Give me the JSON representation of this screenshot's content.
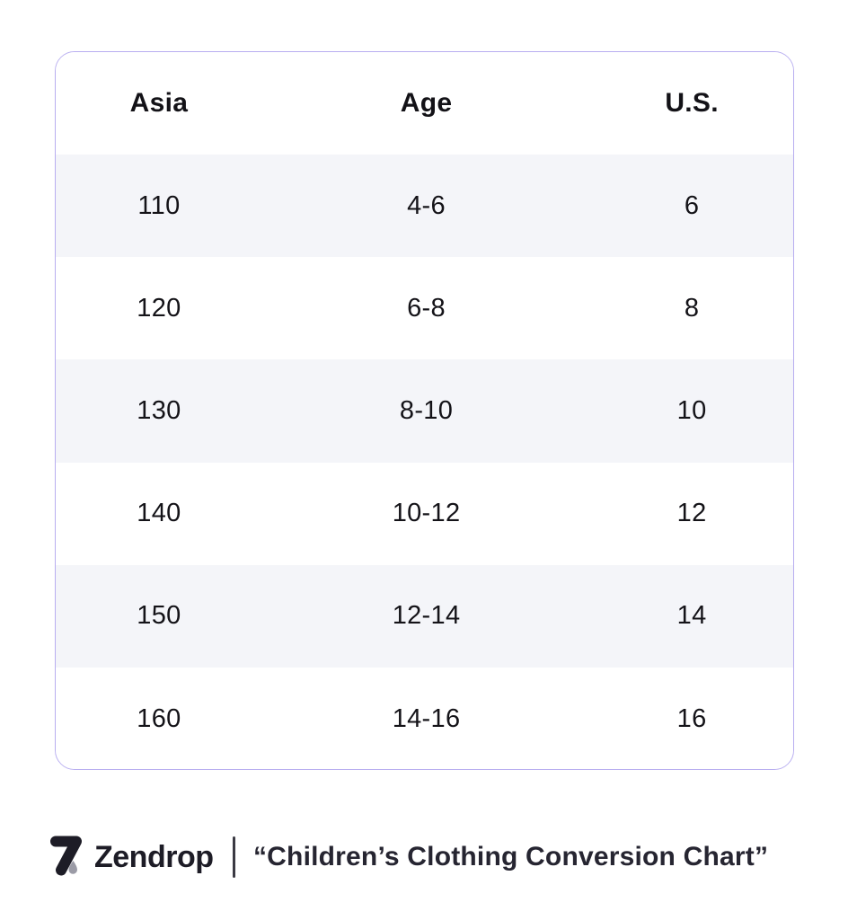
{
  "chart_data": {
    "type": "table",
    "title": "“Children’s Clothing Conversion Chart”",
    "columns": [
      "Asia",
      "Age",
      "U.S."
    ],
    "rows": [
      [
        "110",
        "4-6",
        "6"
      ],
      [
        "120",
        "6-8",
        "8"
      ],
      [
        "130",
        "8-10",
        "10"
      ],
      [
        "140",
        "10-12",
        "12"
      ],
      [
        "150",
        "12-14",
        "14"
      ],
      [
        "160",
        "14-16",
        "16"
      ]
    ],
    "layout_hints": {
      "row_shading": "alternating, first data row shaded",
      "shade_color": "#f4f5f9",
      "border_color": "#b8aef0",
      "legend_position": "none",
      "grid": false
    }
  },
  "footer": {
    "brand": "Zendrop",
    "caption": "“Children’s Clothing Conversion Chart”"
  },
  "icons": {
    "logo": "zendrop-drop-logo"
  },
  "colors": {
    "table_border": "#b8aef0",
    "row_shade": "#f4f5f9",
    "text_dark": "#141318",
    "brand_dark": "#1d1c26",
    "droplet_gray": "#9b9ba6",
    "divider_gray": "#3b3a43"
  }
}
